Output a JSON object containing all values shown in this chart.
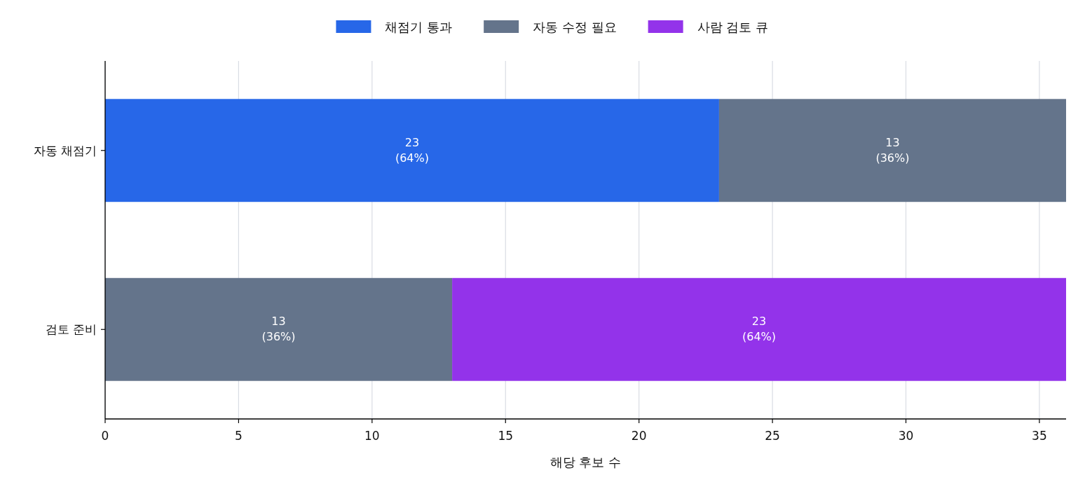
{
  "chart_data": {
    "type": "bar",
    "orientation": "horizontal",
    "stacked": true,
    "categories": [
      "자동 채점기",
      "검토 준비"
    ],
    "series": [
      {
        "name": "채점기 통과",
        "color": "#2767e8",
        "values": [
          23,
          null
        ],
        "value_labels": [
          "23\n(64%)",
          null
        ]
      },
      {
        "name": "자동 수정 필요",
        "color": "#64748b",
        "values": [
          13,
          13
        ],
        "value_labels": [
          "13\n(36%)",
          "13\n(36%)"
        ]
      },
      {
        "name": "사람 검토 큐",
        "color": "#9333ea",
        "values": [
          null,
          23
        ],
        "value_labels": [
          null,
          "23\n(64%)"
        ]
      }
    ],
    "xlabel": "해당 후보 수",
    "xlim": [
      0,
      36
    ],
    "xticks": [
      0,
      5,
      10,
      15,
      20,
      25,
      30,
      35
    ],
    "grid": "x",
    "legend": "top"
  }
}
